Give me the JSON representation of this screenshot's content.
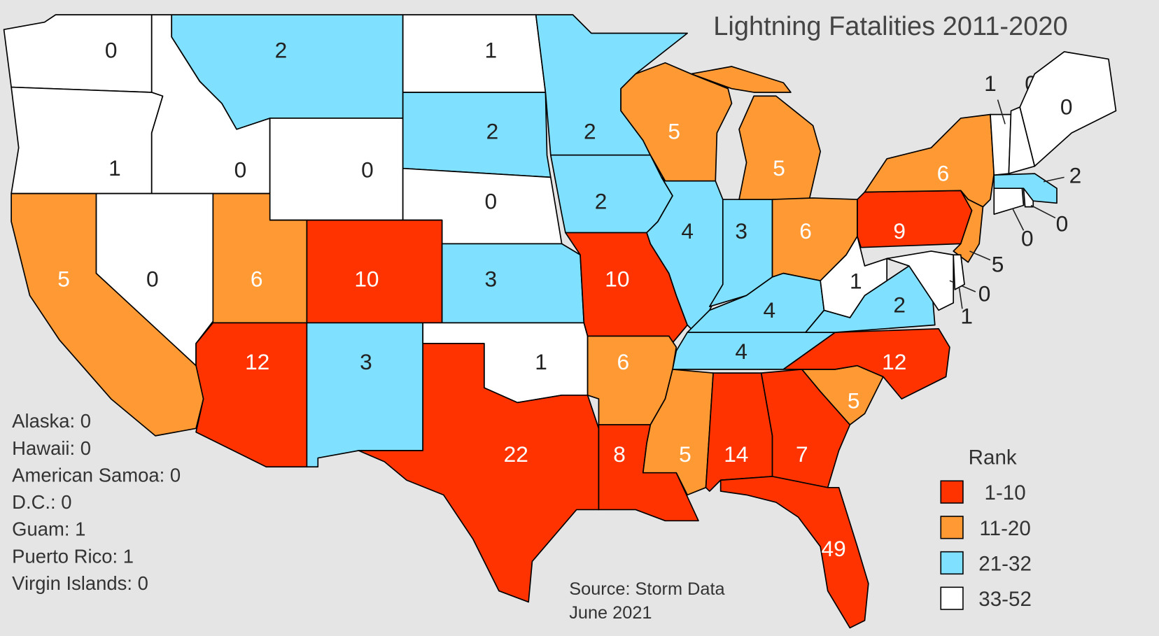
{
  "title": "Lightning Fatalities 2011-2020",
  "legend": {
    "title": "Rank",
    "items": [
      {
        "label": "1-10",
        "color": "#ff3300"
      },
      {
        "label": "11-20",
        "color": "#ff9933"
      },
      {
        "label": "21-32",
        "color": "#80e0ff"
      },
      {
        "label": "33-52",
        "color": "#ffffff"
      }
    ]
  },
  "states": [
    {
      "value": 0,
      "color": "#ffffff"
    },
    {
      "value": 1,
      "color": "#ffffff"
    },
    {
      "value": 0,
      "color": "#ffffff"
    },
    {
      "value": 2,
      "color": "#80e0ff"
    },
    {
      "value": 0,
      "color": "#ffffff"
    },
    {
      "value": 1,
      "color": "#ffffff"
    },
    {
      "value": 2,
      "color": "#80e0ff"
    },
    {
      "value": 0,
      "color": "#ffffff"
    },
    {
      "value": 5,
      "color": "#ff9933"
    },
    {
      "value": 0,
      "color": "#ffffff"
    },
    {
      "value": 6,
      "color": "#ff9933"
    },
    {
      "value": 10,
      "color": "#ff3300"
    },
    {
      "value": 3,
      "color": "#80e0ff"
    },
    {
      "value": 12,
      "color": "#ff3300"
    },
    {
      "value": 3,
      "color": "#80e0ff"
    },
    {
      "value": 1,
      "color": "#ffffff"
    },
    {
      "value": 22,
      "color": "#ff3300"
    },
    {
      "value": 2,
      "color": "#80e0ff"
    },
    {
      "value": 2,
      "color": "#80e0ff"
    },
    {
      "value": 10,
      "color": "#ff3300"
    },
    {
      "value": 5,
      "color": "#ff9933"
    },
    {
      "value": 4,
      "color": "#80e0ff"
    },
    {
      "value": 3,
      "color": "#80e0ff"
    },
    {
      "value": 5,
      "color": "#ff9933"
    },
    {
      "value": 6,
      "color": "#ff9933"
    },
    {
      "value": 4,
      "color": "#80e0ff"
    },
    {
      "value": 4,
      "color": "#80e0ff"
    },
    {
      "value": 6,
      "color": "#ff9933"
    },
    {
      "value": 8,
      "color": "#ff3300"
    },
    {
      "value": 5,
      "color": "#ff9933"
    },
    {
      "value": 14,
      "color": "#ff3300"
    },
    {
      "value": 7,
      "color": "#ff3300"
    },
    {
      "value": 49,
      "color": "#ff3300"
    },
    {
      "value": 5,
      "color": "#ff9933"
    },
    {
      "value": 12,
      "color": "#ff3300"
    },
    {
      "value": 2,
      "color": "#80e0ff"
    },
    {
      "value": 1,
      "color": "#ffffff"
    },
    {
      "value": 9,
      "color": "#ff3300"
    },
    {
      "value": 6,
      "color": "#ff9933"
    },
    {
      "value": 5,
      "color": "#ff9933"
    },
    {
      "value": 0,
      "color": "#ffffff"
    },
    {
      "value": 1,
      "color": "#ffffff"
    },
    {
      "value": 0,
      "color": "#ffffff"
    },
    {
      "value": 0,
      "color": "#ffffff"
    },
    {
      "value": 2,
      "color": "#80e0ff"
    },
    {
      "value": 1,
      "color": "#ffffff"
    },
    {
      "value": 0,
      "color": "#ffffff"
    },
    {
      "value": 0,
      "color": "#ffffff"
    }
  ],
  "territories": [
    "Alaska: 0",
    "Hawaii: 0",
    "American Samoa: 0",
    "D.C.: 0",
    "Guam: 1",
    "Puerto Rico: 1",
    "Virgin Islands: 0"
  ],
  "source": [
    "Source: Storm Data",
    "June 2021"
  ]
}
